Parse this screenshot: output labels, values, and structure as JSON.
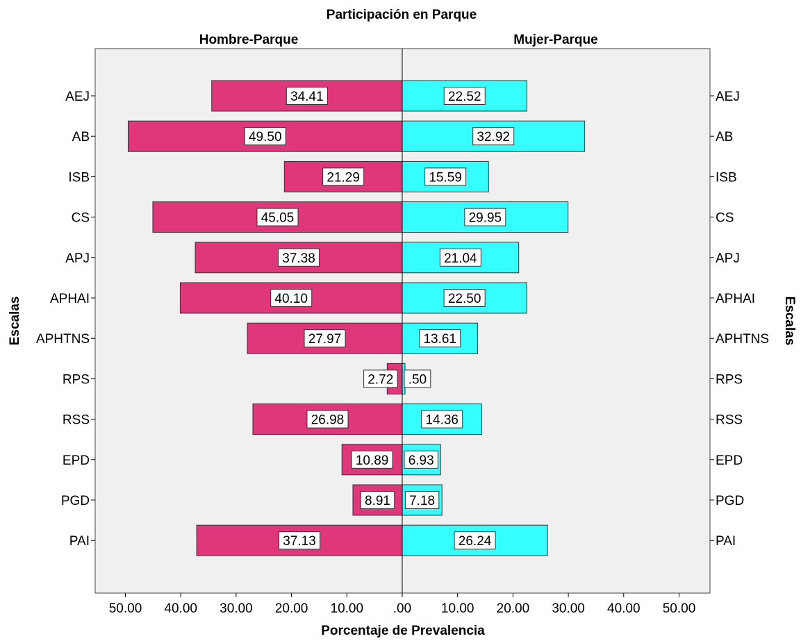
{
  "chart_data": {
    "type": "bar",
    "orientation": "horizontal-population-pyramid",
    "title": "Participación en Parque",
    "xlabel": "Porcentaje de Prevalencia",
    "ylabel_left": "Escalas",
    "ylabel_right": "Escalas",
    "categories": [
      "AEJ",
      "AB",
      "ISB",
      "CS",
      "APJ",
      "APHAI",
      "APHTNS",
      "RPS",
      "RSS",
      "EPD",
      "PGD",
      "PAI"
    ],
    "series": [
      {
        "name": "Hombre-Parque",
        "color": "#e0367a",
        "values": [
          34.41,
          49.5,
          21.29,
          45.05,
          37.38,
          40.1,
          27.97,
          2.72,
          26.98,
          10.89,
          8.91,
          37.13
        ],
        "labels": [
          "34.41",
          "49.50",
          "21.29",
          "45.05",
          "37.38",
          "40.10",
          "27.97",
          "2.72",
          "26.98",
          "10.89",
          "8.91",
          "37.13"
        ]
      },
      {
        "name": "Mujer-Parque",
        "color": "#36ffff",
        "values": [
          22.52,
          32.92,
          15.59,
          29.95,
          21.04,
          22.5,
          13.61,
          0.5,
          14.36,
          6.93,
          7.18,
          26.24
        ],
        "labels": [
          "22.52",
          "32.92",
          "15.59",
          "29.95",
          "21.04",
          "22.50",
          "13.61",
          ".50",
          "14.36",
          "6.93",
          "7.18",
          "26.24"
        ]
      }
    ],
    "x_ticks_left": [
      "50.00",
      "40.00",
      "30.00",
      "20.00",
      "10.00"
    ],
    "x_tick_center": ".00",
    "x_ticks_right": [
      "10.00",
      "20.00",
      "30.00",
      "40.00",
      "50.00"
    ],
    "xlim": [
      0,
      50
    ],
    "grid": false,
    "background": "#f0f0f0"
  }
}
